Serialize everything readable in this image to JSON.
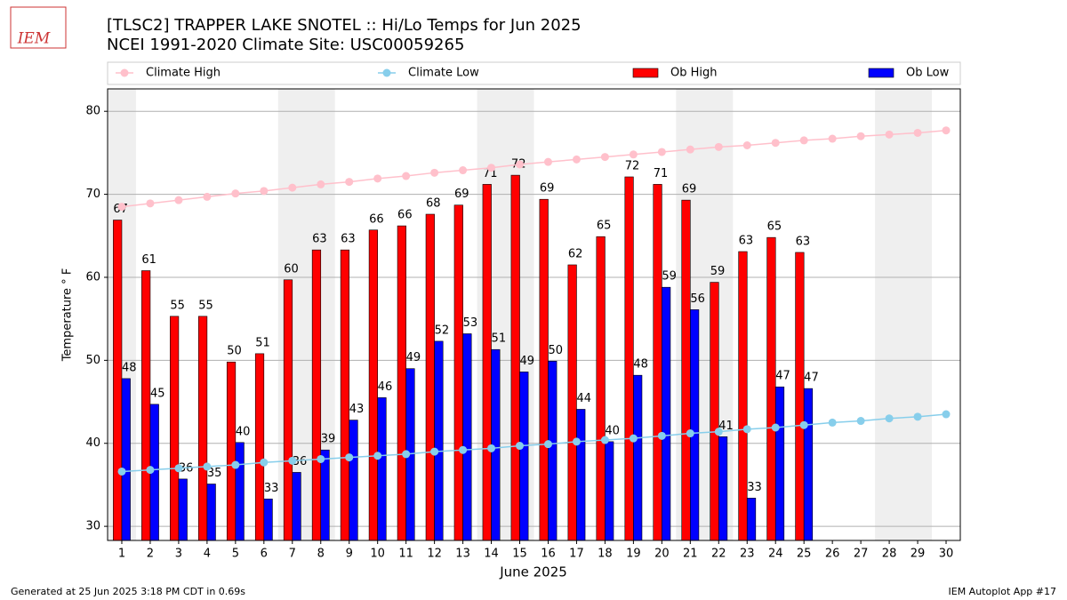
{
  "logo": "IEM",
  "chart_data": {
    "type": "bar_line",
    "title": "[TLSC2] TRAPPER LAKE SNOTEL :: Hi/Lo Temps for Jun 2025",
    "subtitle": "NCEI 1991-2020 Climate Site: USC00059265",
    "x_label": "June 2025",
    "y_label": "Temperature ° F",
    "x": [
      1,
      2,
      3,
      4,
      5,
      6,
      7,
      8,
      9,
      10,
      11,
      12,
      13,
      14,
      15,
      16,
      17,
      18,
      19,
      20,
      21,
      22,
      23,
      24,
      25,
      26,
      27,
      28,
      29,
      30
    ],
    "xlim": [
      0.5,
      30.5
    ],
    "xticks": [
      1,
      2,
      3,
      4,
      5,
      6,
      7,
      8,
      9,
      10,
      11,
      12,
      13,
      14,
      15,
      16,
      17,
      18,
      19,
      20,
      21,
      22,
      23,
      24,
      25,
      26,
      27,
      28,
      29,
      30
    ],
    "ylim": [
      28.3,
      82.7
    ],
    "yticks": [
      30,
      40,
      50,
      60,
      70,
      80
    ],
    "grid": true,
    "legend": "top",
    "shaded_x": [
      [
        0.5,
        1.5
      ],
      [
        6.5,
        8.5
      ],
      [
        13.5,
        15.5
      ],
      [
        20.5,
        22.5
      ],
      [
        27.5,
        29.5
      ]
    ],
    "series": [
      {
        "name": "Climate High",
        "kind": "line",
        "color": "#ffc0cb",
        "values": [
          68.5,
          68.9,
          69.3,
          69.7,
          70.1,
          70.4,
          70.8,
          71.2,
          71.5,
          71.9,
          72.2,
          72.6,
          72.9,
          73.2,
          73.6,
          73.9,
          74.2,
          74.5,
          74.8,
          75.1,
          75.4,
          75.7,
          75.9,
          76.2,
          76.5,
          76.7,
          77.0,
          77.2,
          77.4,
          77.7
        ]
      },
      {
        "name": "Climate Low",
        "kind": "line",
        "color": "#87ceeb",
        "values": [
          36.6,
          36.8,
          37.0,
          37.2,
          37.4,
          37.7,
          37.9,
          38.1,
          38.3,
          38.5,
          38.7,
          39.0,
          39.2,
          39.4,
          39.7,
          39.9,
          40.2,
          40.4,
          40.6,
          40.9,
          41.2,
          41.4,
          41.7,
          41.9,
          42.2,
          42.5,
          42.7,
          43.0,
          43.2,
          43.5
        ]
      },
      {
        "name": "Ob High",
        "kind": "bar",
        "offset": -0.15,
        "color": "#ff0000",
        "values": [
          66.9,
          60.8,
          55.3,
          55.3,
          49.8,
          50.8,
          59.7,
          63.3,
          63.3,
          65.7,
          66.2,
          67.6,
          68.7,
          71.2,
          72.3,
          69.4,
          61.5,
          64.9,
          72.1,
          71.2,
          69.3,
          59.4,
          63.1,
          64.8,
          63.0,
          null,
          null,
          null,
          null,
          null
        ],
        "value_labels": [
          "67",
          "61",
          "55",
          "55",
          "50",
          "51",
          "60",
          "63",
          "63",
          "66",
          "66",
          "68",
          "69",
          "71",
          "72",
          "69",
          "62",
          "65",
          "72",
          "71",
          "69",
          "59",
          "63",
          "65",
          "63",
          null,
          null,
          null,
          null,
          null
        ]
      },
      {
        "name": "Ob Low",
        "kind": "bar",
        "offset": 0.15,
        "color": "#0000ff",
        "values": [
          47.8,
          44.7,
          35.7,
          35.1,
          40.1,
          33.3,
          36.5,
          39.2,
          42.8,
          45.5,
          49.0,
          52.3,
          53.2,
          51.3,
          48.6,
          49.9,
          44.1,
          40.2,
          48.2,
          58.8,
          56.1,
          40.8,
          33.4,
          46.8,
          46.6,
          null,
          null,
          null,
          null,
          null
        ],
        "value_labels": [
          "48",
          "45",
          "36",
          "35",
          "40",
          "33",
          "36",
          "39",
          "43",
          "46",
          "49",
          "52",
          "53",
          "51",
          "49",
          "50",
          "44",
          "40",
          "48",
          "59",
          "56",
          "41",
          "33",
          "47",
          "47",
          null,
          null,
          null,
          null,
          null
        ]
      }
    ]
  },
  "footer_left": "Generated at 25 Jun 2025 3:18 PM CDT in 0.69s",
  "footer_right": "IEM Autoplot App #17"
}
